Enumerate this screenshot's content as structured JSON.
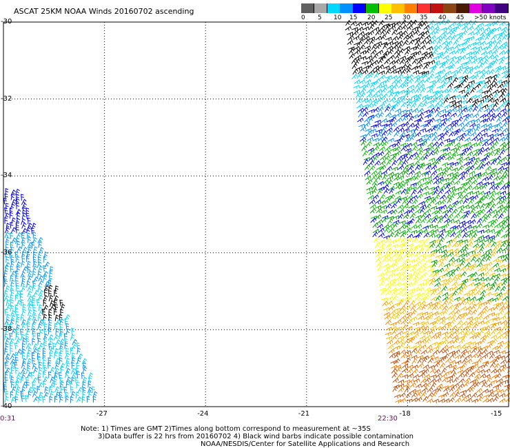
{
  "title": "ASCAT 25KM NOAA Winds 20160702 ascending",
  "colorbar": {
    "colors": [
      "#606060",
      "#a8a8a8",
      "#00d8ff",
      "#0090ff",
      "#0000ff",
      "#00c000",
      "#ffff00",
      "#ffc000",
      "#ff8000",
      "#ff3030",
      "#c01010",
      "#8b4513",
      "#4a1a00",
      "#e000e0",
      "#8000c0",
      "#400080"
    ],
    "labels": [
      "0",
      "5",
      "10",
      "15",
      "20",
      "25",
      "30",
      "35",
      "40",
      "45",
      ">50 knots"
    ]
  },
  "lat_labels": [
    "-30",
    "-32",
    "-34",
    "-36",
    "-38",
    "-40"
  ],
  "lon_labels": [
    "-27",
    "-24",
    "-21",
    "-18",
    "-15"
  ],
  "time_labels": [
    "0:31",
    "22:30"
  ],
  "notes": [
    "Note: 1) Times are GMT 2)Times along bottom correspond to measurement at ~35S",
    "3)Data buffer is 22 hrs from 20160702 4) Black wind barbs indicate possible contamination",
    "NOAA/NESDIS/Center for Satellite Applications and Research"
  ],
  "map": {
    "lat_range": [
      -40,
      -30
    ],
    "lon_range": [
      -30,
      -15
    ],
    "grid_lats": [
      -32,
      -34,
      -36,
      -38
    ],
    "grid_lons": [
      -27,
      -24,
      -21,
      -18
    ]
  }
}
